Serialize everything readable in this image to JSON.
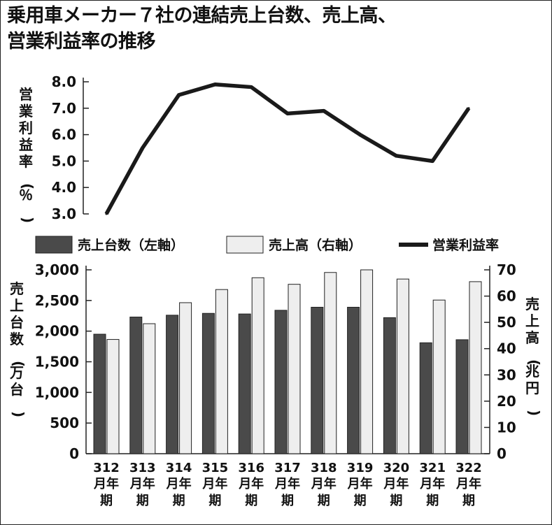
{
  "title": {
    "line1": "乗用車メーカー７社の連結売上台数、売上高、",
    "line2": "営業利益率の推移"
  },
  "chart_data": [
    {
      "type": "line",
      "name": "margin",
      "categories": [
        "3/12",
        "3/13",
        "3/14",
        "3/15",
        "3/16",
        "3/17",
        "3/18",
        "3/19",
        "3/20",
        "3/21",
        "3/22"
      ],
      "series": [
        {
          "name": "営業利益率",
          "values": [
            3.0,
            5.5,
            7.5,
            7.9,
            7.8,
            6.8,
            6.9,
            6.0,
            5.2,
            5.0,
            7.0
          ],
          "color": "#1a1a1a"
        }
      ],
      "ylabel": "営業利益率（％）",
      "ylim": [
        3.0,
        8.0
      ],
      "yticks": [
        "3.0",
        "4.0",
        "5.0",
        "6.0",
        "7.0",
        "8.0"
      ]
    },
    {
      "type": "bar",
      "name": "sales",
      "categories": [
        "3/12",
        "3/13",
        "3/14",
        "3/15",
        "3/16",
        "3/17",
        "3/18",
        "3/19",
        "3/20",
        "3/21",
        "3/22"
      ],
      "category_labels": [
        {
          "top": "3",
          "num": "12",
          "l2": "月年",
          "l3": "期"
        },
        {
          "top": "3",
          "num": "13",
          "l2": "月年",
          "l3": "期"
        },
        {
          "top": "3",
          "num": "14",
          "l2": "月年",
          "l3": "期"
        },
        {
          "top": "3",
          "num": "15",
          "l2": "月年",
          "l3": "期"
        },
        {
          "top": "3",
          "num": "16",
          "l2": "月年",
          "l3": "期"
        },
        {
          "top": "3",
          "num": "17",
          "l2": "月年",
          "l3": "期"
        },
        {
          "top": "3",
          "num": "18",
          "l2": "月年",
          "l3": "期"
        },
        {
          "top": "3",
          "num": "19",
          "l2": "月年",
          "l3": "期"
        },
        {
          "top": "3",
          "num": "20",
          "l2": "月年",
          "l3": "期"
        },
        {
          "top": "3",
          "num": "21",
          "l2": "月年",
          "l3": "期"
        },
        {
          "top": "3",
          "num": "22",
          "l2": "月年",
          "l3": "期"
        }
      ],
      "series": [
        {
          "name": "売上台数（左軸）",
          "axis": "left",
          "values": [
            1950,
            2230,
            2260,
            2290,
            2280,
            2340,
            2390,
            2390,
            2220,
            1810,
            1860
          ],
          "color": "#4a4a4a"
        },
        {
          "name": "売上高（右軸）",
          "axis": "right",
          "values": [
            43.5,
            49.5,
            57.5,
            62.5,
            67,
            64.5,
            69,
            70,
            66.5,
            58.5,
            65.5
          ],
          "color": "#eeeeee"
        }
      ],
      "ylabel_left": "売上台数（万台）",
      "ylabel_right": "売上高（兆円）",
      "ylim_left": [
        0,
        3000
      ],
      "ylim_right": [
        0,
        70
      ],
      "yticks_left": [
        "0",
        "500",
        "1,000",
        "1,500",
        "2,000",
        "2,500",
        "3,000"
      ],
      "yticks_right": [
        "0",
        "10",
        "20",
        "30",
        "40",
        "50",
        "60",
        "70"
      ]
    }
  ],
  "legend": {
    "position": "between-charts",
    "items": [
      {
        "label": "売上台数（左軸）",
        "kind": "bar",
        "color": "#4a4a4a"
      },
      {
        "label": "売上高（右軸）",
        "kind": "bar",
        "color": "#eeeeee"
      },
      {
        "label": "営業利益率",
        "kind": "line",
        "color": "#1a1a1a"
      }
    ]
  }
}
